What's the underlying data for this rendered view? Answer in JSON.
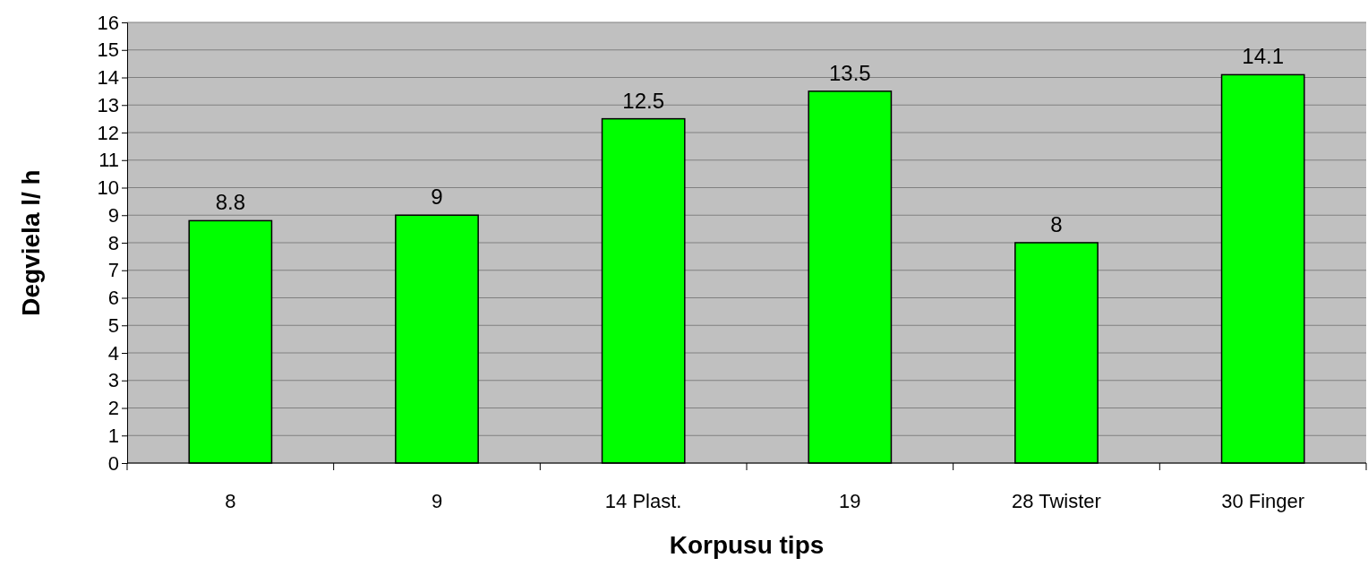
{
  "chart_data": {
    "type": "bar",
    "xlabel": "Korpusu tips",
    "ylabel": "Degviela l/ h",
    "categories": [
      "8",
      "9",
      "14 Plast.",
      "19",
      "28 Twister",
      "30 Finger"
    ],
    "values": [
      8.8,
      9,
      12.5,
      13.5,
      8,
      14.1
    ],
    "color": "#00ff00",
    "ylim": [
      0,
      16
    ],
    "yticks": [
      0,
      1,
      2,
      3,
      4,
      5,
      6,
      7,
      8,
      9,
      10,
      11,
      12,
      13,
      14,
      15,
      16
    ],
    "grid": "y",
    "data_labels": true
  }
}
